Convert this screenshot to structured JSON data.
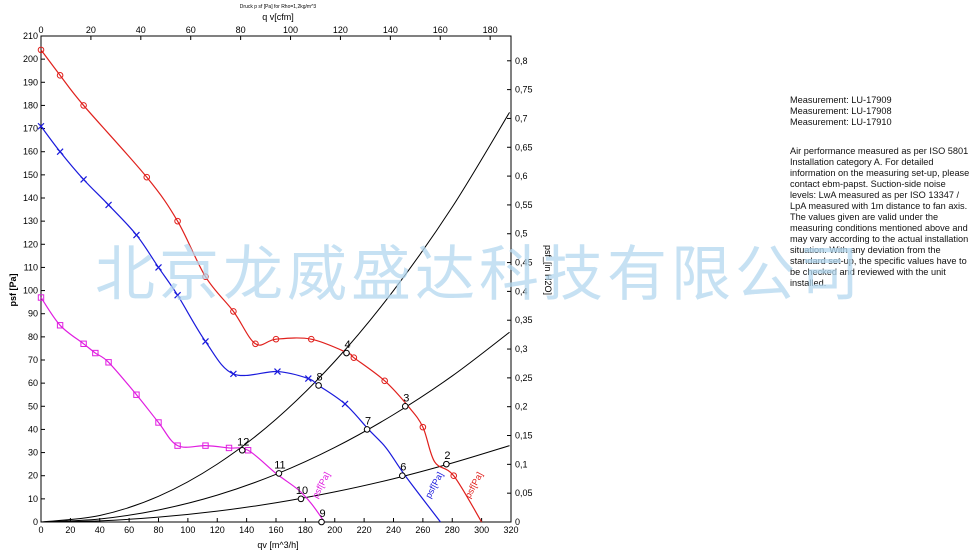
{
  "chart_data": {
    "type": "line",
    "title": "Druck p sf [Pa] for Rho=1,2kg/m^3",
    "xlabel": "qv [m^3/h]",
    "x2label": "q v[cfm]",
    "ylabel": "psf [Pa]",
    "y2label": "psf_[in H2O]",
    "xlim": [
      0,
      320
    ],
    "ylim": [
      0,
      210
    ],
    "x2lim": [
      0,
      188.35
    ],
    "y2lim": [
      0,
      0.843
    ],
    "x_ticks": [
      "0",
      "20",
      "40",
      "60",
      "80",
      "100",
      "120",
      "140",
      "160",
      "180",
      "200",
      "220",
      "240",
      "260",
      "280",
      "300",
      "320"
    ],
    "y_ticks": [
      "0",
      "10",
      "20",
      "30",
      "40",
      "50",
      "60",
      "70",
      "80",
      "90",
      "100",
      "110",
      "120",
      "130",
      "140",
      "150",
      "160",
      "170",
      "180",
      "190",
      "200",
      "210"
    ],
    "x2_ticks": [
      "0",
      "20",
      "40",
      "60",
      "80",
      "100",
      "120",
      "140",
      "160",
      "180"
    ],
    "y2_ticks": [
      "0",
      "0,05",
      "0,1",
      "0,15",
      "0,2",
      "0,25",
      "0,3",
      "0,35",
      "0,4",
      "0,45",
      "0,5",
      "0,55",
      "0,6",
      "0,65",
      "0,7",
      "0,75",
      "0,8"
    ],
    "series": [
      {
        "name": "psf[Pa]",
        "color": "#e0201c",
        "marker": "circle",
        "x": [
          0,
          13,
          29,
          72,
          93,
          112,
          131,
          146,
          160,
          184,
          209,
          213,
          234,
          250,
          260,
          268,
          281,
          300
        ],
        "y": [
          204,
          193,
          180,
          149,
          130,
          106,
          91,
          77,
          79,
          79,
          73,
          71,
          61,
          50,
          41,
          26,
          20,
          0
        ],
        "mark_x": [
          0,
          13,
          29,
          72,
          93,
          112,
          131,
          146,
          160,
          184,
          213,
          234,
          260,
          281
        ]
      },
      {
        "name": "psf[Pa]",
        "color": "#1a1adc",
        "marker": "cross",
        "x": [
          0,
          13,
          29,
          46,
          65,
          80,
          93,
          112,
          131,
          161,
          182,
          189,
          207,
          223,
          235,
          248,
          272
        ],
        "y": [
          171,
          160,
          148,
          137,
          124,
          110,
          98,
          78,
          64,
          65,
          62,
          59,
          51,
          40,
          32,
          20,
          0
        ],
        "mark_x": [
          0,
          13,
          29,
          46,
          65,
          80,
          93,
          112,
          131,
          161,
          182,
          207
        ]
      },
      {
        "name": "psf[Pa]",
        "color": "#e01ee0",
        "marker": "square",
        "x": [
          0,
          13,
          29,
          37,
          46,
          65,
          80,
          93,
          112,
          128,
          141,
          160,
          175,
          184,
          193
        ],
        "y": [
          97,
          85,
          77,
          73,
          69,
          55,
          43,
          33,
          33,
          32,
          31,
          21,
          14,
          8,
          0
        ],
        "mark_x": [
          0,
          13,
          29,
          37,
          46,
          65,
          80,
          93,
          112,
          128,
          141
        ]
      }
    ],
    "system_curves": [
      {
        "color": "#000000",
        "x": [
          0,
          40,
          80,
          120,
          160,
          200,
          240,
          280,
          319
        ],
        "y": [
          0,
          2.8,
          11.1,
          25,
          44.4,
          69.4,
          100,
          136.1,
          177
        ]
      },
      {
        "color": "#000000",
        "x": [
          0,
          40,
          80,
          120,
          160,
          200,
          240,
          280,
          319
        ],
        "y": [
          0,
          1.3,
          5.2,
          11.6,
          20.6,
          32.2,
          46.4,
          63.1,
          82
        ]
      },
      {
        "color": "#000000",
        "x": [
          0,
          40,
          80,
          120,
          160,
          200,
          240,
          280,
          319
        ],
        "y": [
          0,
          0.5,
          2.1,
          4.7,
          8.3,
          13,
          18.7,
          25.5,
          33
        ]
      }
    ],
    "operating_points": [
      {
        "label": "2",
        "x": 276,
        "y": 25
      },
      {
        "label": "3",
        "x": 248,
        "y": 50
      },
      {
        "label": "4",
        "x": 208,
        "y": 73
      },
      {
        "label": "6",
        "x": 246,
        "y": 20
      },
      {
        "label": "7",
        "x": 222,
        "y": 40
      },
      {
        "label": "8",
        "x": 189,
        "y": 59
      },
      {
        "label": "9",
        "x": 191,
        "y": 0
      },
      {
        "label": "10",
        "x": 177,
        "y": 10
      },
      {
        "label": "11",
        "x": 162,
        "y": 21
      },
      {
        "label": "12",
        "x": 137,
        "y": 31
      }
    ],
    "curve_labels": [
      {
        "text": "psf[Pa]",
        "x": 188,
        "y": 10,
        "series": 2
      },
      {
        "text": "psf[Pa]",
        "x": 265,
        "y": 10,
        "series": 1
      },
      {
        "text": "psf[Pa]",
        "x": 292,
        "y": 10,
        "series": 0
      }
    ],
    "grid": false
  },
  "info": {
    "measurements": [
      "Measurement: LU-17909",
      "Measurement: LU-17908",
      "Measurement: LU-17910"
    ],
    "note_lines": [
      "Air performance measured as per ISO 5801",
      "Installation category A. For detailed",
      "information on the measuring set-up, please",
      "contact ebm-papst. Suction-side noise",
      "levels: LwA measured as per ISO 13347 /",
      "LpA measured with 1m distance to fan axis.",
      "The values given are valid under the",
      "measuring conditions mentioned above and",
      "may vary according to the actual installation",
      "situation. With any deviation from the",
      "standard set-up, the specific values have to",
      "be checked and reviewed with the unit",
      "installed."
    ]
  },
  "watermark": "北京龙威盛达科技有限公司"
}
